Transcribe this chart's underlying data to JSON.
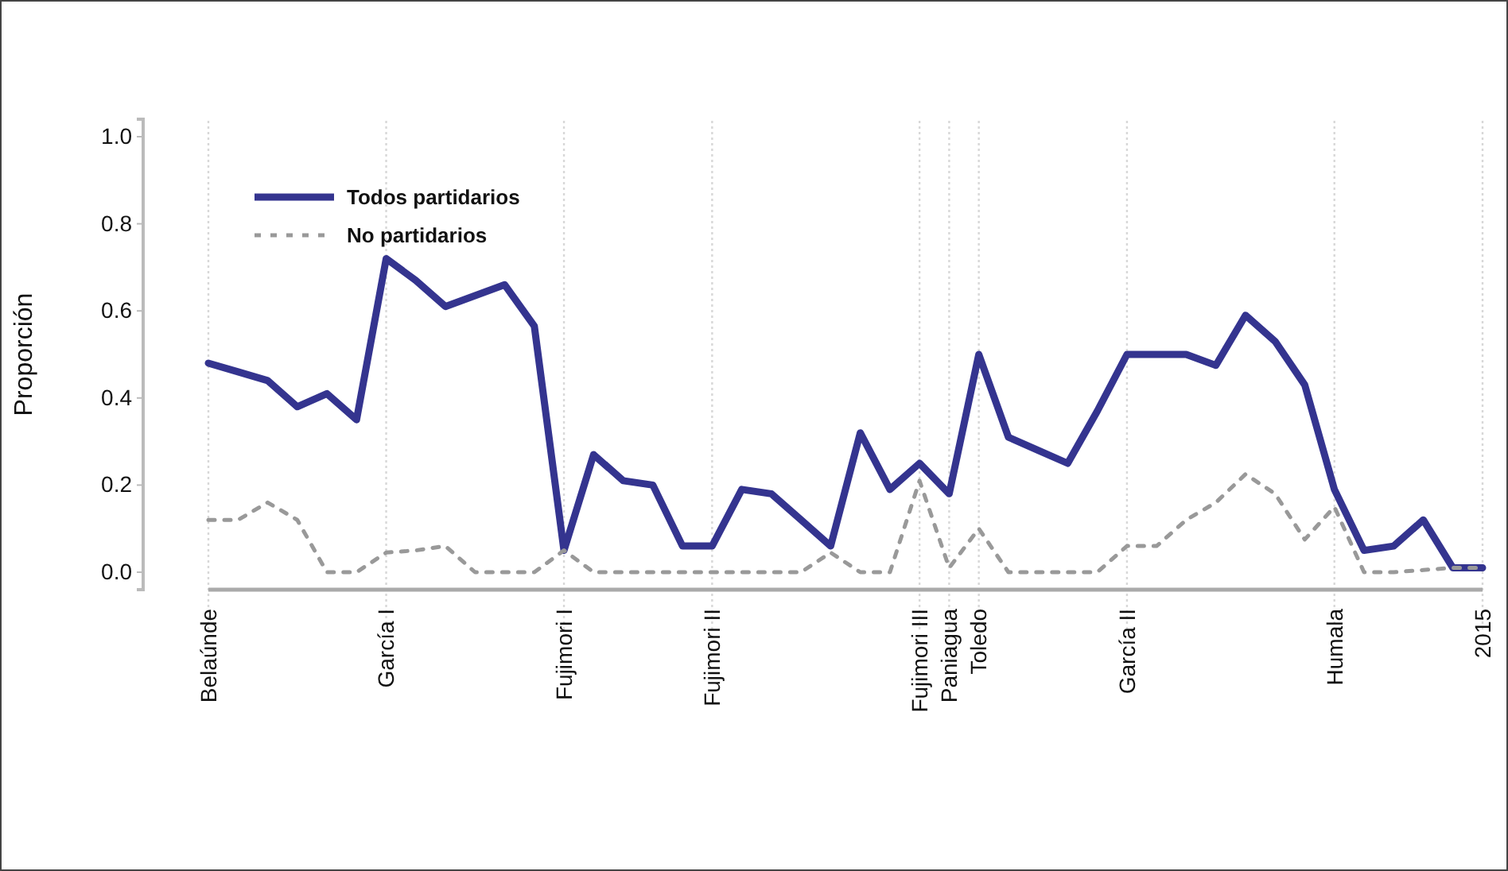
{
  "chart_data": {
    "type": "line",
    "ylabel": "Proporción",
    "ylim": [
      -0.04,
      1.04
    ],
    "yticks": [
      {
        "value": 0,
        "label": "0.0"
      },
      {
        "value": 0.2,
        "label": "0.2"
      },
      {
        "value": 0.4,
        "label": "0.4"
      },
      {
        "value": 0.6,
        "label": "0.6"
      },
      {
        "value": 0.8,
        "label": "0.8"
      },
      {
        "value": 1,
        "label": "1.0"
      }
    ],
    "categories": [
      "Belaúnde",
      null,
      null,
      null,
      null,
      null,
      "García I",
      null,
      null,
      null,
      null,
      null,
      "Fujimori I",
      null,
      null,
      null,
      null,
      "Fujimori II",
      null,
      null,
      null,
      null,
      null,
      null,
      "Fujimori III",
      "Paniagua",
      "Toledo",
      null,
      null,
      null,
      null,
      "García II",
      null,
      null,
      null,
      null,
      null,
      null,
      "Humala",
      null,
      null,
      null,
      null,
      "2015"
    ],
    "grid": "x",
    "legend": "top left",
    "marker": "none",
    "series": [
      {
        "name": "Todos partidarios",
        "color": "#34348f",
        "line_style": "solid",
        "values": [
          0.48,
          0.46,
          0.44,
          0.38,
          0.41,
          0.35,
          0.72,
          0.67,
          0.61,
          0.635,
          0.66,
          0.565,
          0.05,
          0.27,
          0.21,
          0.2,
          0.06,
          0.06,
          0.19,
          0.18,
          0.12,
          0.06,
          0.32,
          0.19,
          0.25,
          0.18,
          0.5,
          0.31,
          0.28,
          0.25,
          0.37,
          0.5,
          0.5,
          0.5,
          0.475,
          0.59,
          0.53,
          0.43,
          0.19,
          0.05,
          0.06,
          0.12,
          0.01,
          0.01
        ]
      },
      {
        "name": "No partidarios",
        "color": "#999999",
        "line_style": "dashed",
        "values": [
          0.12,
          0.12,
          0.16,
          0.12,
          0,
          0,
          0.045,
          0.05,
          0.06,
          0,
          0,
          0,
          0.05,
          0,
          0,
          0,
          0,
          0,
          0,
          0,
          0,
          0.045,
          0,
          0,
          0.21,
          0.01,
          0.1,
          0,
          0,
          0,
          0,
          0.06,
          0.06,
          0.12,
          0.16,
          0.225,
          0.18,
          0.075,
          0.15,
          0,
          0,
          0.005,
          0.01,
          0.01
        ]
      }
    ]
  }
}
